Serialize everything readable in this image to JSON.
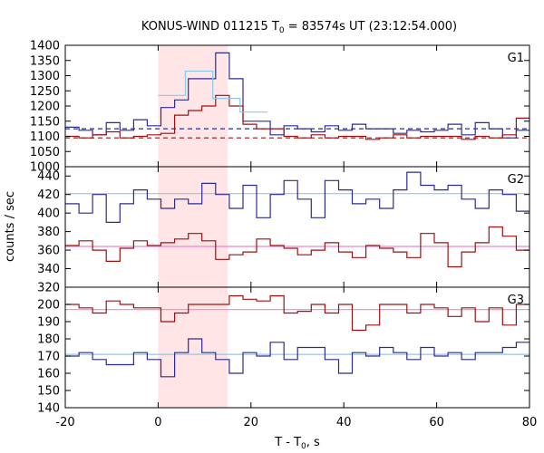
{
  "chart_data": {
    "type": "line",
    "title": {
      "main": "KONUS-WIND 011215 T",
      "sub": "0",
      "rest": " = 83574s UT (23:12:54.000)"
    },
    "xlabel": {
      "main": "T - T",
      "sub": "0",
      "rest": ", s"
    },
    "ylabel": "counts / sec",
    "xlim": [
      -20,
      80
    ],
    "x_ticks": [
      "-20",
      "0",
      "20",
      "40",
      "60",
      "80"
    ],
    "shaded_interval": [
      0,
      15
    ],
    "colors": {
      "blue": "#2b2b9a",
      "red": "#a01010",
      "light_blue": "#87cbeb",
      "pink": "#ee88cc",
      "shade": "#ffe5e5"
    },
    "panels": [
      {
        "name": "G1",
        "ylim": [
          1000,
          1400
        ],
        "y_ticks": [
          "1000",
          "1050",
          "1100",
          "1150",
          "1200",
          "1250",
          "1300",
          "1350",
          "1400"
        ],
        "series": [
          {
            "color": "blue",
            "step": 2.944,
            "x_start": -20,
            "values": [
              1130,
              1120,
              1105,
              1145,
              1120,
              1155,
              1135,
              1195,
              1220,
              1290,
              1290,
              1375,
              1290,
              1150,
              1150,
              1105,
              1135,
              1125,
              1115,
              1135,
              1120,
              1140,
              1125,
              1125,
              1110,
              1120,
              1115,
              1120,
              1140,
              1105,
              1145,
              1125,
              1095,
              1120
            ]
          },
          {
            "color": "red",
            "step": 2.944,
            "x_start": -20,
            "values": [
              1100,
              1095,
              1105,
              1115,
              1095,
              1100,
              1105,
              1110,
              1170,
              1185,
              1200,
              1235,
              1200,
              1140,
              1125,
              1125,
              1100,
              1095,
              1105,
              1095,
              1100,
              1100,
              1090,
              1095,
              1105,
              1095,
              1100,
              1100,
              1100,
              1090,
              1100,
              1095,
              1105,
              1160
            ]
          },
          {
            "color": "light_blue",
            "step": 5.888,
            "x_start": 0,
            "values": [
              1235,
              1315,
              1225,
              1180
            ]
          }
        ],
        "baselines": [
          {
            "color": "blue",
            "y": 1125,
            "dashed": true
          },
          {
            "color": "red",
            "y": 1095,
            "dashed": true
          }
        ]
      },
      {
        "name": "G2",
        "ylim": [
          320,
          450
        ],
        "y_ticks": [
          "320",
          "340",
          "360",
          "380",
          "400",
          "420",
          "440"
        ],
        "series": [
          {
            "color": "blue",
            "step": 2.944,
            "x_start": -20,
            "values": [
              410,
              400,
              420,
              390,
              410,
              425,
              415,
              405,
              415,
              410,
              432,
              420,
              405,
              430,
              395,
              420,
              435,
              415,
              395,
              435,
              425,
              410,
              415,
              405,
              425,
              444,
              430,
              425,
              430,
              415,
              405,
              425,
              420,
              402
            ]
          },
          {
            "color": "red",
            "step": 2.944,
            "x_start": -20,
            "values": [
              365,
              370,
              360,
              348,
              362,
              370,
              365,
              368,
              372,
              378,
              370,
              350,
              355,
              358,
              372,
              365,
              362,
              355,
              360,
              368,
              358,
              352,
              365,
              362,
              358,
              352,
              378,
              368,
              342,
              358,
              368,
              385,
              375,
              360
            ]
          }
        ],
        "baselines": [
          {
            "color": "light_blue",
            "y": 421,
            "dashed": false
          },
          {
            "color": "pink",
            "y": 364,
            "dashed": false
          }
        ]
      },
      {
        "name": "G3",
        "ylim": [
          140,
          210
        ],
        "y_ticks": [
          "140",
          "150",
          "160",
          "170",
          "180",
          "190",
          "200"
        ],
        "series": [
          {
            "color": "blue",
            "step": 2.944,
            "x_start": -20,
            "values": [
              170,
              172,
              168,
              165,
              165,
              172,
              168,
              158,
              172,
              180,
              172,
              168,
              160,
              172,
              170,
              178,
              168,
              175,
              175,
              168,
              160,
              172,
              170,
              175,
              172,
              168,
              175,
              170,
              172,
              168,
              172,
              172,
              175,
              178
            ]
          },
          {
            "color": "red",
            "step": 2.944,
            "x_start": -20,
            "values": [
              200,
              198,
              195,
              202,
              200,
              198,
              198,
              190,
              195,
              200,
              200,
              200,
              205,
              203,
              202,
              205,
              195,
              196,
              200,
              195,
              200,
              185,
              188,
              200,
              200,
              195,
              200,
              198,
              193,
              198,
              190,
              198,
              188,
              200
            ]
          }
        ],
        "baselines": [
          {
            "color": "pink",
            "y": 197,
            "dashed": false
          },
          {
            "color": "light_blue",
            "y": 171,
            "dashed": false
          }
        ]
      }
    ]
  }
}
